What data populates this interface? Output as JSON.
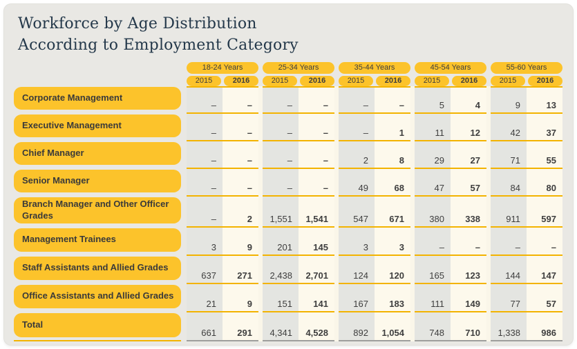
{
  "title": {
    "line1": "Workforce by Age Distribution",
    "line2": "According to Employment Category"
  },
  "table": {
    "age_groups": [
      "18-24 Years",
      "25-34 Years",
      "35-44 Years",
      "45-54 Years",
      "55-60 Years"
    ],
    "year_labels": [
      "2015",
      "2016"
    ],
    "rows": [
      {
        "label": "Corporate Management",
        "values": [
          "–",
          "–",
          "–",
          "–",
          "–",
          "–",
          "5",
          "4",
          "9",
          "13"
        ]
      },
      {
        "label": "Executive Management",
        "values": [
          "–",
          "–",
          "–",
          "–",
          "–",
          "1",
          "11",
          "12",
          "42",
          "37"
        ]
      },
      {
        "label": "Chief Manager",
        "values": [
          "–",
          "–",
          "–",
          "–",
          "2",
          "8",
          "29",
          "27",
          "71",
          "55"
        ]
      },
      {
        "label": "Senior Manager",
        "values": [
          "–",
          "–",
          "–",
          "–",
          "49",
          "68",
          "47",
          "57",
          "84",
          "80"
        ]
      },
      {
        "label": "Branch Manager and Other Officer Grades",
        "values": [
          "–",
          "2",
          "1,551",
          "1,541",
          "547",
          "671",
          "380",
          "338",
          "911",
          "597"
        ]
      },
      {
        "label": "Management Trainees",
        "values": [
          "3",
          "9",
          "201",
          "145",
          "3",
          "3",
          "–",
          "–",
          "–",
          "–"
        ]
      },
      {
        "label": "Staff Assistants and Allied Grades",
        "values": [
          "637",
          "271",
          "2,438",
          "2,701",
          "124",
          "120",
          "165",
          "123",
          "144",
          "147"
        ]
      },
      {
        "label": "Office Assistants and Allied Grades",
        "values": [
          "21",
          "9",
          "151",
          "141",
          "167",
          "183",
          "111",
          "149",
          "77",
          "57"
        ]
      },
      {
        "label": "Total",
        "is_total": true,
        "values": [
          "661",
          "291",
          "4,341",
          "4,528",
          "892",
          "1,054",
          "748",
          "710",
          "1,338",
          "986"
        ]
      }
    ]
  },
  "chart_data": {
    "type": "table",
    "title": "Workforce by Age Distribution According to Employment Category",
    "column_groups": [
      "18-24 Years",
      "25-34 Years",
      "35-44 Years",
      "45-54 Years",
      "55-60 Years"
    ],
    "sub_columns": [
      "2015",
      "2016"
    ],
    "rows": [
      {
        "category": "Corporate Management",
        "values": [
          null,
          null,
          null,
          null,
          null,
          null,
          5,
          4,
          9,
          13
        ]
      },
      {
        "category": "Executive Management",
        "values": [
          null,
          null,
          null,
          null,
          null,
          1,
          11,
          12,
          42,
          37
        ]
      },
      {
        "category": "Chief Manager",
        "values": [
          null,
          null,
          null,
          null,
          2,
          8,
          29,
          27,
          71,
          55
        ]
      },
      {
        "category": "Senior Manager",
        "values": [
          null,
          null,
          null,
          null,
          49,
          68,
          47,
          57,
          84,
          80
        ]
      },
      {
        "category": "Branch Manager and Other Officer Grades",
        "values": [
          null,
          2,
          1551,
          1541,
          547,
          671,
          380,
          338,
          911,
          597
        ]
      },
      {
        "category": "Management Trainees",
        "values": [
          3,
          9,
          201,
          145,
          3,
          3,
          null,
          null,
          null,
          null
        ]
      },
      {
        "category": "Staff Assistants and Allied Grades",
        "values": [
          637,
          271,
          2438,
          2701,
          124,
          120,
          165,
          123,
          144,
          147
        ]
      },
      {
        "category": "Office Assistants and Allied Grades",
        "values": [
          21,
          9,
          151,
          141,
          167,
          183,
          111,
          149,
          77,
          57
        ]
      },
      {
        "category": "Total",
        "values": [
          661,
          291,
          4341,
          4528,
          892,
          1054,
          748,
          710,
          1338,
          986
        ]
      }
    ],
    "null_display": "–"
  },
  "colors": {
    "yellow": "#fcc32b",
    "line_yellow": "#f3b300",
    "gray_col": "#e4e5e1",
    "cream_area": "#faf6e9",
    "cream_cell": "#fdf9ec",
    "card_bg": "#e9e8e4",
    "title_color": "#24384a",
    "total_line": "#9e9e9c"
  }
}
